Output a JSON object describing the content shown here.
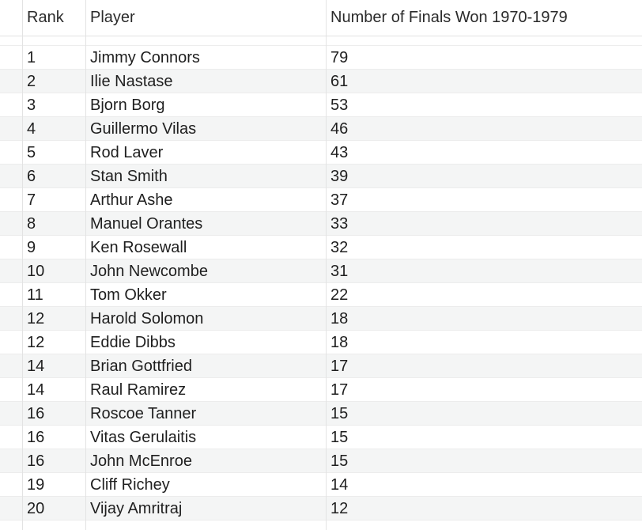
{
  "table": {
    "columns": {
      "rank": "Rank",
      "player": "Player",
      "finals": "Number of Finals Won 1970-1979"
    },
    "rows": [
      {
        "rank": "1",
        "player": "Jimmy Connors",
        "finals": "79"
      },
      {
        "rank": "2",
        "player": "Ilie Nastase",
        "finals": "61"
      },
      {
        "rank": "3",
        "player": "Bjorn Borg",
        "finals": "53"
      },
      {
        "rank": "4",
        "player": "Guillermo Vilas",
        "finals": "46"
      },
      {
        "rank": "5",
        "player": "Rod Laver",
        "finals": "43"
      },
      {
        "rank": "6",
        "player": "Stan Smith",
        "finals": "39"
      },
      {
        "rank": "7",
        "player": "Arthur Ashe",
        "finals": "37"
      },
      {
        "rank": "8",
        "player": "Manuel Orantes",
        "finals": "33"
      },
      {
        "rank": "9",
        "player": "Ken Rosewall",
        "finals": "32"
      },
      {
        "rank": "10",
        "player": "John Newcombe",
        "finals": "31"
      },
      {
        "rank": "11",
        "player": "Tom Okker",
        "finals": "22"
      },
      {
        "rank": "12",
        "player": "Harold Solomon",
        "finals": "18"
      },
      {
        "rank": "12",
        "player": "Eddie Dibbs",
        "finals": "18"
      },
      {
        "rank": "14",
        "player": "Brian Gottfried",
        "finals": "17"
      },
      {
        "rank": "14",
        "player": "Raul Ramirez",
        "finals": "17"
      },
      {
        "rank": "16",
        "player": "Roscoe Tanner",
        "finals": "15"
      },
      {
        "rank": "16",
        "player": "Vitas Gerulaitis",
        "finals": "15"
      },
      {
        "rank": "16",
        "player": "John McEnroe",
        "finals": "15"
      },
      {
        "rank": "19",
        "player": "Cliff Richey",
        "finals": "14"
      },
      {
        "rank": "20",
        "player": "Vijay Amritraj",
        "finals": "12"
      }
    ]
  },
  "colors": {
    "background": "#ffffff",
    "alt_row": "#f4f5f5",
    "grid_line": "#e3e3e3",
    "text": "#1f1f1f"
  }
}
